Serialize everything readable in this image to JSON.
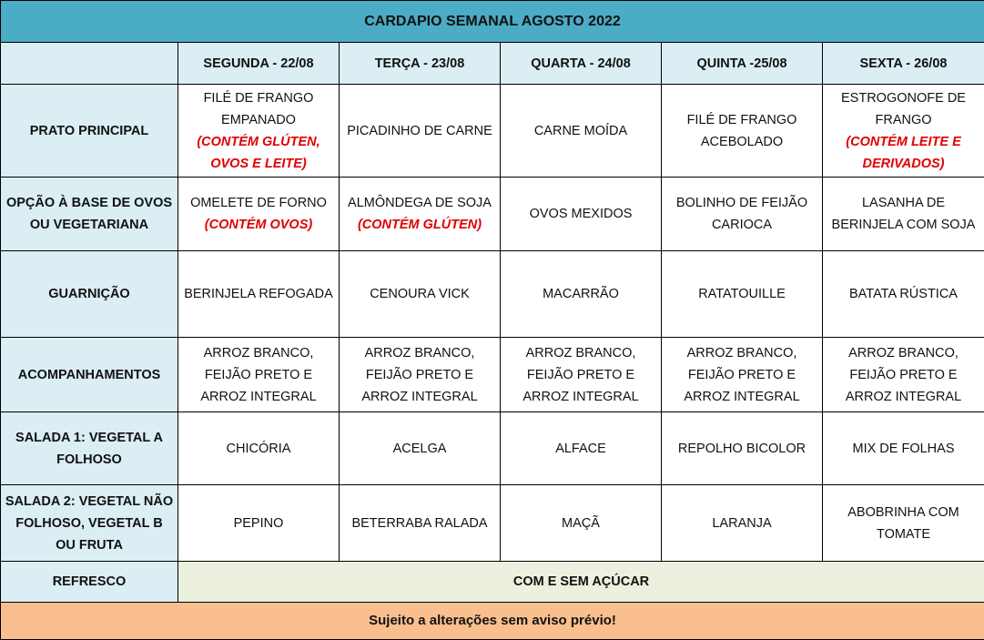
{
  "title": "CARDAPIO SEMANAL AGOSTO 2022",
  "corner": "",
  "days": [
    "SEGUNDA - 22/08",
    "TERÇA - 23/08",
    "QUARTA - 24/08",
    "QUINTA -25/08",
    "SEXTA - 26/08"
  ],
  "rows": [
    {
      "label": "PRATO PRINCIPAL",
      "cells": [
        {
          "text": "FILÉ DE FRANGO EMPANADO",
          "note": "(CONTÉM GLÚTEN, OVOS E LEITE)"
        },
        {
          "text": "PICADINHO DE CARNE",
          "note": ""
        },
        {
          "text": "CARNE MOÍDA",
          "note": ""
        },
        {
          "text": "FILÉ DE FRANGO ACEBOLADO",
          "note": ""
        },
        {
          "text": "ESTROGONOFE DE FRANGO",
          "note": "(CONTÉM LEITE E DERIVADOS)"
        }
      ]
    },
    {
      "label": "OPÇÃO À BASE DE OVOS OU VEGETARIANA",
      "cells": [
        {
          "text": "OMELETE DE FORNO",
          "note": "(CONTÉM OVOS)"
        },
        {
          "text": "ALMÔNDEGA DE SOJA",
          "note": "(CONTÉM GLÚTEN)"
        },
        {
          "text": "OVOS MEXIDOS",
          "note": ""
        },
        {
          "text": "BOLINHO DE FEIJÃO CARIOCA",
          "note": ""
        },
        {
          "text": "LASANHA DE BERINJELA COM SOJA",
          "note": ""
        }
      ]
    },
    {
      "label": "GUARNIÇÃO",
      "cells": [
        {
          "text": "BERINJELA REFOGADA",
          "note": ""
        },
        {
          "text": "CENOURA VICK",
          "note": ""
        },
        {
          "text": "MACARRÃO",
          "note": ""
        },
        {
          "text": "RATATOUILLE",
          "note": ""
        },
        {
          "text": "BATATA RÚSTICA",
          "note": ""
        }
      ]
    },
    {
      "label": "ACOMPANHAMENTOS",
      "cells": [
        {
          "text": "ARROZ BRANCO, FEIJÃO PRETO E ARROZ INTEGRAL",
          "note": ""
        },
        {
          "text": "ARROZ BRANCO, FEIJÃO PRETO E ARROZ INTEGRAL",
          "note": ""
        },
        {
          "text": "ARROZ BRANCO, FEIJÃO PRETO E ARROZ INTEGRAL",
          "note": ""
        },
        {
          "text": "ARROZ BRANCO, FEIJÃO PRETO E ARROZ INTEGRAL",
          "note": ""
        },
        {
          "text": "ARROZ BRANCO, FEIJÃO PRETO E ARROZ INTEGRAL",
          "note": ""
        }
      ]
    },
    {
      "label": "SALADA 1: VEGETAL A FOLHOSO",
      "cells": [
        {
          "text": "CHICÓRIA",
          "note": ""
        },
        {
          "text": "ACELGA",
          "note": ""
        },
        {
          "text": "ALFACE",
          "note": ""
        },
        {
          "text": "REPOLHO BICOLOR",
          "note": ""
        },
        {
          "text": "MIX DE FOLHAS",
          "note": ""
        }
      ]
    },
    {
      "label": "SALADA 2: VEGETAL NÃO FOLHOSO, VEGETAL B OU FRUTA",
      "cells": [
        {
          "text": "PEPINO",
          "note": ""
        },
        {
          "text": "BETERRABA RALADA",
          "note": ""
        },
        {
          "text": "MAÇÃ",
          "note": ""
        },
        {
          "text": "LARANJA",
          "note": ""
        },
        {
          "text": "ABOBRINHA COM TOMATE",
          "note": ""
        }
      ]
    }
  ],
  "refresco": {
    "label": "REFRESCO",
    "value": "COM E SEM AÇÚCAR"
  },
  "footer": "Sujeito a alterações sem aviso prévio!",
  "colors": {
    "title_bg": "#4BACC6",
    "header_bg": "#DAEEF3",
    "refresco_bg": "#EBF1DE",
    "footer_bg": "#FABF8F",
    "allergen_note": "#E00000"
  }
}
